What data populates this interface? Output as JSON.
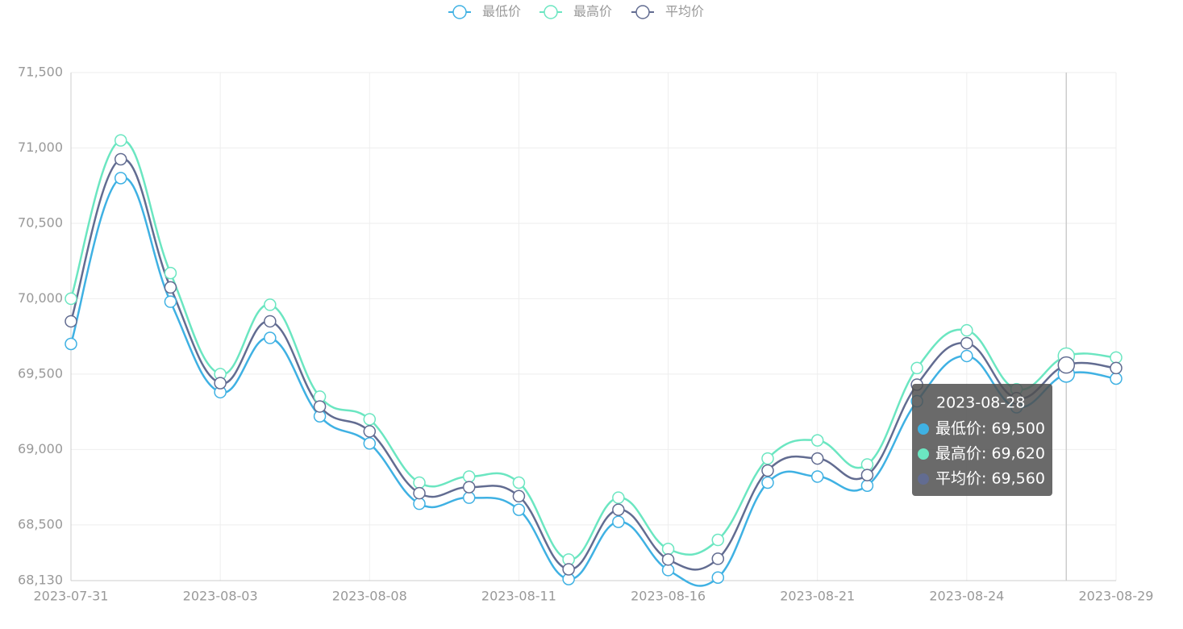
{
  "chart_data": {
    "type": "line",
    "smooth": true,
    "grid": true,
    "categories": [
      "2023-07-31",
      null,
      null,
      "2023-08-03",
      null,
      null,
      "2023-08-08",
      null,
      null,
      "2023-08-11",
      null,
      null,
      "2023-08-16",
      null,
      null,
      "2023-08-21",
      null,
      null,
      "2023-08-24",
      null,
      null,
      "2023-08-29"
    ],
    "series": [
      {
        "name": "最低价",
        "color": "#3fb1e3",
        "values": [
          69700,
          70800,
          69980,
          69380,
          69740,
          69220,
          69040,
          68640,
          68680,
          68600,
          68140,
          68520,
          68200,
          68150,
          68780,
          68820,
          68760,
          69320,
          69620,
          69280,
          69500,
          69470
        ]
      },
      {
        "name": "最高价",
        "color": "#6be6c1",
        "values": [
          70000,
          71050,
          70170,
          69500,
          69960,
          69350,
          69200,
          68780,
          68820,
          68780,
          68270,
          68680,
          68340,
          68400,
          68940,
          69060,
          68900,
          69540,
          69790,
          69400,
          69620,
          69610
        ]
      },
      {
        "name": "平均价",
        "color": "#626c91",
        "values": [
          69850,
          70925,
          70075,
          69440,
          69850,
          69285,
          69120,
          68710,
          68750,
          68690,
          68205,
          68600,
          68270,
          68275,
          68860,
          68940,
          68830,
          69430,
          69705,
          69340,
          69560,
          69540
        ]
      }
    ],
    "ylim": [
      68130,
      71500
    ],
    "yticks": [
      {
        "value": 68130,
        "label": "68,130"
      },
      {
        "value": 68500,
        "label": "68,500"
      },
      {
        "value": 69000,
        "label": "69,000"
      },
      {
        "value": 69500,
        "label": "69,500"
      },
      {
        "value": 70000,
        "label": "70,000"
      },
      {
        "value": 70500,
        "label": "70,500"
      },
      {
        "value": 71000,
        "label": "71,000"
      },
      {
        "value": 71500,
        "label": "71,500"
      }
    ],
    "tooltip": {
      "title": "2023-08-28",
      "rows": [
        "最低价: 69,500",
        "最高价: 69,620",
        "平均价: 69,560"
      ]
    }
  }
}
